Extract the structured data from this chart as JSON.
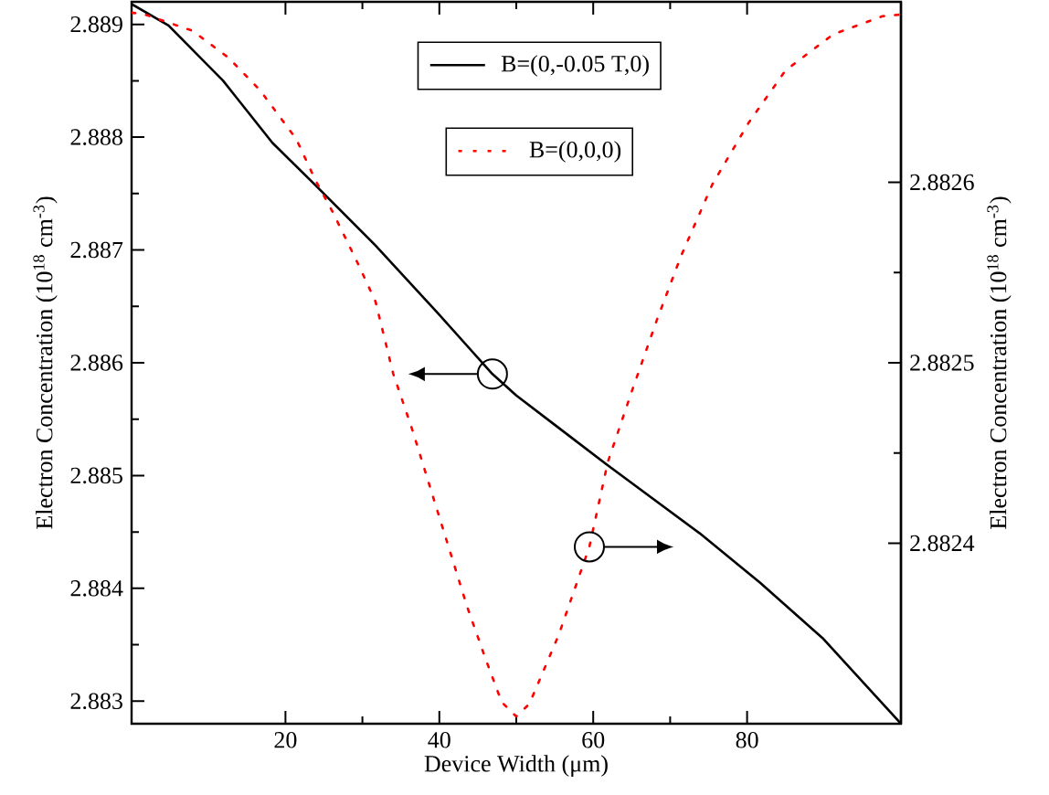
{
  "chart_data": {
    "type": "line",
    "xlabel": "Device Width (μm)",
    "ylabel": "Electron Concentration (10$^{18}$ cm$^{-3}$)",
    "y2label": "Electron Concentration (10$^{18}$ cm$^{-3}$)",
    "xlim": [
      0,
      100
    ],
    "xticks": [
      20,
      40,
      60,
      80
    ],
    "ylim": [
      2.8828,
      2.8892
    ],
    "yticks": [
      2.883,
      2.884,
      2.885,
      2.886,
      2.887,
      2.888,
      2.889
    ],
    "y2lim": [
      2.8823,
      2.8827
    ],
    "y2ticks": [
      2.8824,
      2.8825,
      2.8826
    ],
    "legend": "top",
    "grid": false,
    "marker": "none",
    "series": [
      {
        "name": "B=(0,-0.05 T,0)",
        "color": "#000000",
        "line_style": "solid",
        "x": [
          0,
          4.8,
          11.9,
          18.3,
          23.8,
          31.7,
          39.8,
          46.9,
          50,
          54.8,
          61.9,
          73.8,
          81.7,
          89.8,
          100
        ],
        "values": [
          2.88918,
          2.88899,
          2.8885,
          2.88795,
          2.88758,
          2.88704,
          2.88644,
          2.8859,
          2.88571,
          2.88546,
          2.88509,
          2.88449,
          2.88405,
          2.88356,
          2.8828
        ]
      },
      {
        "name": "B=(0,0,0)",
        "color": "#ff0000",
        "line_style": "dotted",
        "axis": "y2",
        "x": [
          0,
          1.7,
          7.9,
          12.6,
          16.7,
          21.4,
          23.8,
          26.2,
          29.3,
          31.7,
          34,
          36.4,
          38.8,
          41.2,
          43.6,
          46,
          48.1,
          50,
          51.7,
          55.5,
          59.5,
          61.9,
          65,
          68.3,
          71.4,
          75.5,
          80.2,
          85,
          91.2,
          97.6,
          100
        ],
        "values": [
          2.882694,
          2.882693,
          2.882684,
          2.882669,
          2.882651,
          2.882624,
          2.882602,
          2.882583,
          2.882556,
          2.882534,
          2.882494,
          2.882464,
          2.882431,
          2.882398,
          2.882365,
          2.882336,
          2.882312,
          2.882304,
          2.882311,
          2.882349,
          2.882398,
          2.882445,
          2.882484,
          2.882524,
          2.882559,
          2.882599,
          2.882633,
          2.882662,
          2.882682,
          2.882692,
          2.882693
        ]
      }
    ]
  }
}
